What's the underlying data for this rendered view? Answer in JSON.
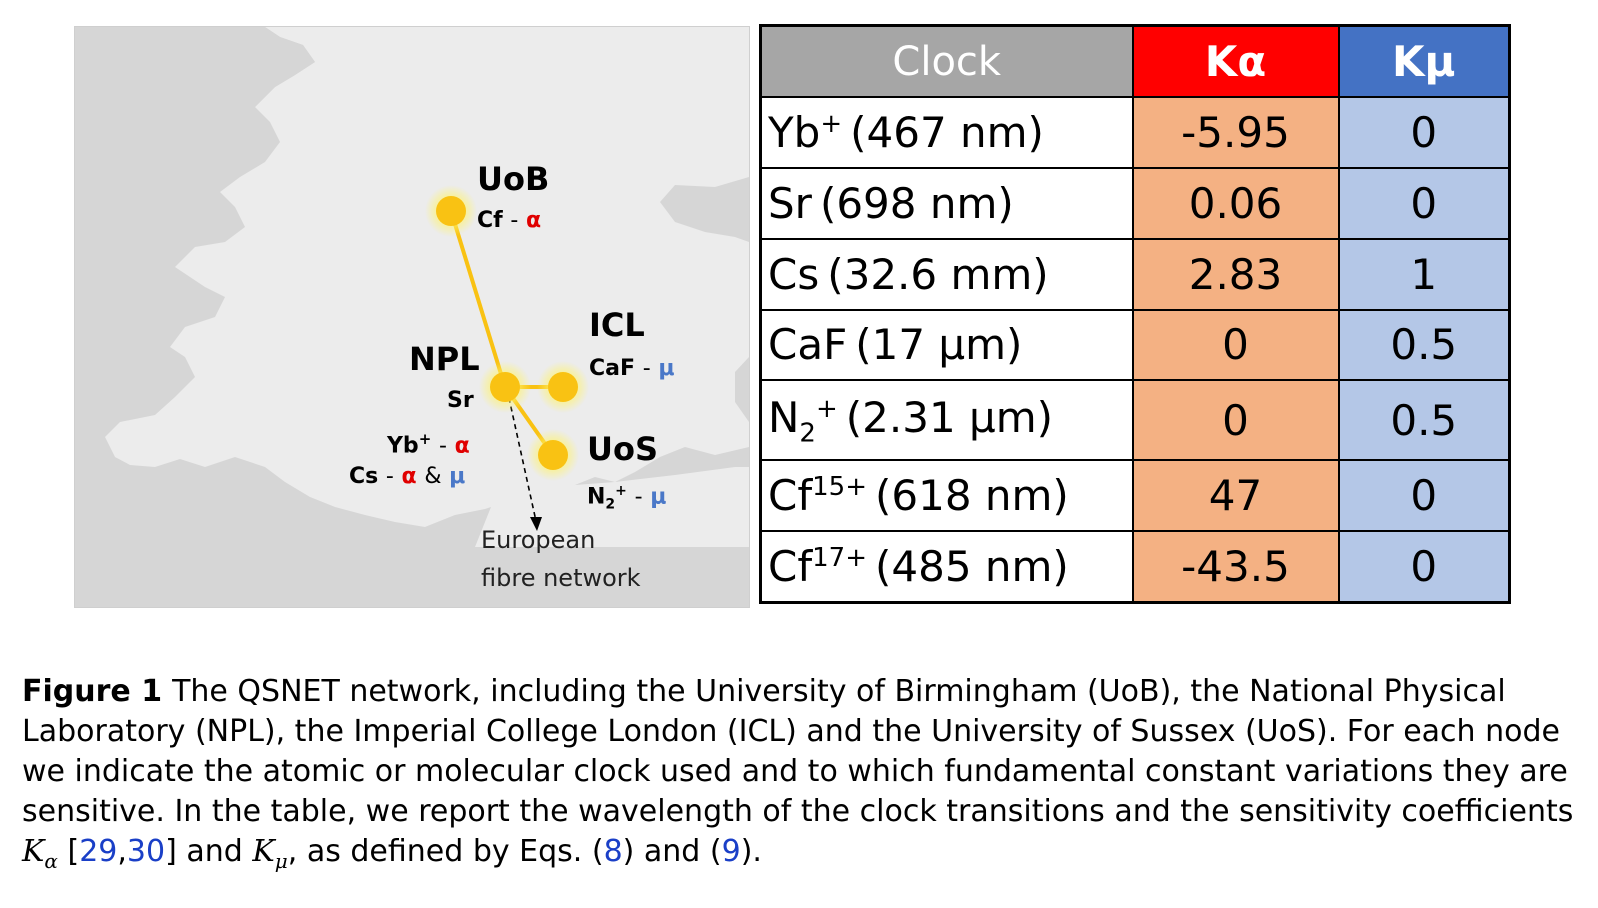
{
  "map": {
    "nodes": {
      "uob": {
        "name": "UoB",
        "clock": "Cf",
        "dash": "-",
        "alpha": "α"
      },
      "icl": {
        "name": "ICL",
        "clock": "CaF",
        "dash": "-",
        "mu": "μ"
      },
      "npl": {
        "name": "NPL",
        "clock_line1": "Sr",
        "clock_line2_species": "Yb",
        "clock_line2_charge": "+",
        "dash": "-",
        "alpha": "α",
        "clock_line3_species": "Cs",
        "and": "&",
        "mu": "μ"
      },
      "uos": {
        "name": "UoS",
        "clock_species": "N",
        "clock_sub": "2",
        "clock_sup": "+",
        "dash": "-",
        "mu": "μ"
      }
    },
    "fibre_note_line1": "European",
    "fibre_note_line2": "fibre network",
    "colors": {
      "land": "#cfcfcf",
      "sea": "#ececec",
      "node": "#f9c213",
      "link": "#f9c213",
      "alpha": "#e00000",
      "mu": "#4a78c8"
    }
  },
  "table": {
    "headers": {
      "clock": "Clock",
      "ka": "Kα",
      "km": "Kμ"
    },
    "rows": [
      {
        "species": "Yb",
        "sub": "",
        "sup": "+",
        "wavelength": "(467 nm)",
        "ka": "-5.95",
        "km": "0"
      },
      {
        "species": "Sr",
        "sub": "",
        "sup": "",
        "wavelength": "(698 nm)",
        "ka": "0.06",
        "km": "0"
      },
      {
        "species": "Cs",
        "sub": "",
        "sup": "",
        "wavelength": "(32.6 mm)",
        "ka": "2.83",
        "km": "1"
      },
      {
        "species": "CaF",
        "sub": "",
        "sup": "",
        "wavelength": "(17 μm)",
        "ka": "0",
        "km": "0.5"
      },
      {
        "species": "N",
        "sub": "2",
        "sup": "+",
        "wavelength": "(2.31 μm)",
        "ka": "0",
        "km": "0.5"
      },
      {
        "species": "Cf",
        "sub": "",
        "sup": "15+",
        "wavelength": "(618 nm)",
        "ka": "47",
        "km": "0"
      },
      {
        "species": "Cf",
        "sub": "",
        "sup": "17+",
        "wavelength": "(485 nm)",
        "ka": "-43.5",
        "km": "0"
      }
    ],
    "colors": {
      "header_clock": "#a6a6a6",
      "header_ka": "#ff0000",
      "header_km": "#4472c4",
      "cell_ka": "#f4b183",
      "cell_km": "#b4c7e7"
    }
  },
  "caption": {
    "label": "Figure 1",
    "text1": "The QSNET network, including the University of Birmingham (UoB), the National Physical Laboratory (NPL), the Imperial College London (ICL) and the University of Sussex (UoS). For each node we indicate the atomic or molecular clock used and to which fundamental constant variations they are sensitive. In the table, we report the wavelength of the clock transitions and the sensitivity coefficients ",
    "k_alpha_base": "K",
    "k_alpha_sub": "α",
    "bracket_open": " [",
    "ref_29": "29",
    "ref_sep": ",",
    "ref_30": "30",
    "bracket_close": "]",
    "text_and": " and ",
    "k_mu_base": "K",
    "k_mu_sub": "μ",
    "text2": ", as defined by Eqs. (",
    "ref_8": "8",
    "text3": ") and (",
    "ref_9": "9",
    "text4": ")."
  }
}
